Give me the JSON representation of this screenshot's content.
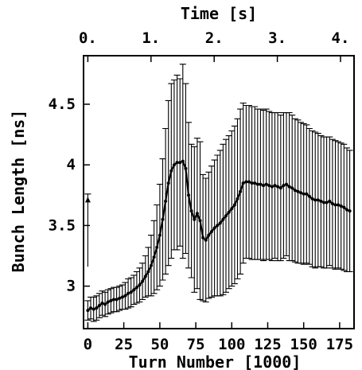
{
  "chart_data": {
    "type": "line",
    "top_axis": {
      "label": "Time [s]",
      "ticks": [
        "0.",
        "1.",
        "2.",
        "3.",
        "4."
      ],
      "tick_values": [
        0,
        1,
        2,
        3,
        4
      ],
      "turns_per_second": 43.9
    },
    "xlabel": "Turn Number [1000]",
    "ylabel": "Bunch Length [ns]",
    "x_ticks": [
      0,
      25,
      50,
      75,
      100,
      125,
      150,
      175
    ],
    "y_ticks": [
      3,
      3.5,
      4,
      4.5
    ],
    "y_tick_labels": [
      "3",
      "3.5",
      "4",
      "4.5"
    ],
    "xlim": [
      -3,
      185
    ],
    "ylim": [
      2.65,
      4.9
    ],
    "grid": false,
    "marker_color": "#000000",
    "series": [
      {
        "x": [
          0,
          2,
          4,
          6,
          8,
          10,
          12,
          14,
          16,
          18,
          20,
          22,
          24,
          26,
          28,
          30,
          32,
          34,
          36,
          38,
          40,
          42,
          44,
          46,
          48,
          50,
          52,
          54,
          56,
          58,
          60,
          62,
          64,
          66,
          68,
          70,
          72,
          74,
          76,
          78,
          80,
          82,
          84,
          86,
          88,
          90,
          92,
          94,
          96,
          98,
          100,
          102,
          104,
          106,
          108,
          110,
          112,
          114,
          116,
          118,
          120,
          122,
          124,
          126,
          128,
          130,
          132,
          134,
          136,
          138,
          140,
          142,
          144,
          146,
          148,
          150,
          152,
          154,
          156,
          158,
          160,
          162,
          164,
          166,
          168,
          170,
          172,
          174,
          176,
          178,
          180,
          182
        ],
        "y": [
          2.8,
          2.82,
          2.81,
          2.82,
          2.84,
          2.86,
          2.85,
          2.87,
          2.88,
          2.89,
          2.89,
          2.9,
          2.91,
          2.92,
          2.94,
          2.95,
          2.97,
          2.99,
          3.01,
          3.04,
          3.08,
          3.12,
          3.17,
          3.24,
          3.32,
          3.42,
          3.55,
          3.7,
          3.85,
          3.95,
          4.0,
          4.02,
          4.02,
          4.03,
          3.97,
          3.75,
          3.62,
          3.55,
          3.6,
          3.54,
          3.4,
          3.38,
          3.42,
          3.45,
          3.48,
          3.5,
          3.52,
          3.55,
          3.58,
          3.61,
          3.64,
          3.67,
          3.72,
          3.78,
          3.85,
          3.86,
          3.86,
          3.85,
          3.85,
          3.84,
          3.84,
          3.83,
          3.84,
          3.83,
          3.82,
          3.83,
          3.82,
          3.81,
          3.83,
          3.84,
          3.82,
          3.81,
          3.79,
          3.78,
          3.77,
          3.76,
          3.76,
          3.74,
          3.72,
          3.71,
          3.71,
          3.7,
          3.69,
          3.69,
          3.7,
          3.68,
          3.67,
          3.67,
          3.66,
          3.65,
          3.63,
          3.62
        ],
        "err": [
          0.08,
          0.09,
          0.1,
          0.1,
          0.1,
          0.1,
          0.1,
          0.1,
          0.1,
          0.1,
          0.1,
          0.1,
          0.1,
          0.11,
          0.12,
          0.12,
          0.12,
          0.13,
          0.14,
          0.15,
          0.17,
          0.2,
          0.25,
          0.3,
          0.35,
          0.42,
          0.5,
          0.6,
          0.68,
          0.72,
          0.7,
          0.72,
          0.69,
          0.8,
          0.7,
          0.6,
          0.55,
          0.6,
          0.62,
          0.65,
          0.52,
          0.51,
          0.52,
          0.54,
          0.56,
          0.58,
          0.6,
          0.62,
          0.63,
          0.63,
          0.64,
          0.65,
          0.66,
          0.68,
          0.66,
          0.63,
          0.63,
          0.63,
          0.63,
          0.62,
          0.62,
          0.62,
          0.62,
          0.61,
          0.61,
          0.6,
          0.61,
          0.6,
          0.6,
          0.59,
          0.61,
          0.6,
          0.59,
          0.59,
          0.58,
          0.58,
          0.57,
          0.56,
          0.56,
          0.56,
          0.55,
          0.54,
          0.54,
          0.54,
          0.53,
          0.53,
          0.53,
          0.52,
          0.52,
          0.52,
          0.51,
          0.5
        ]
      }
    ],
    "outlier": {
      "x": 0,
      "y": 3.71,
      "err_low": 0.55,
      "err_high": 0.05
    }
  }
}
